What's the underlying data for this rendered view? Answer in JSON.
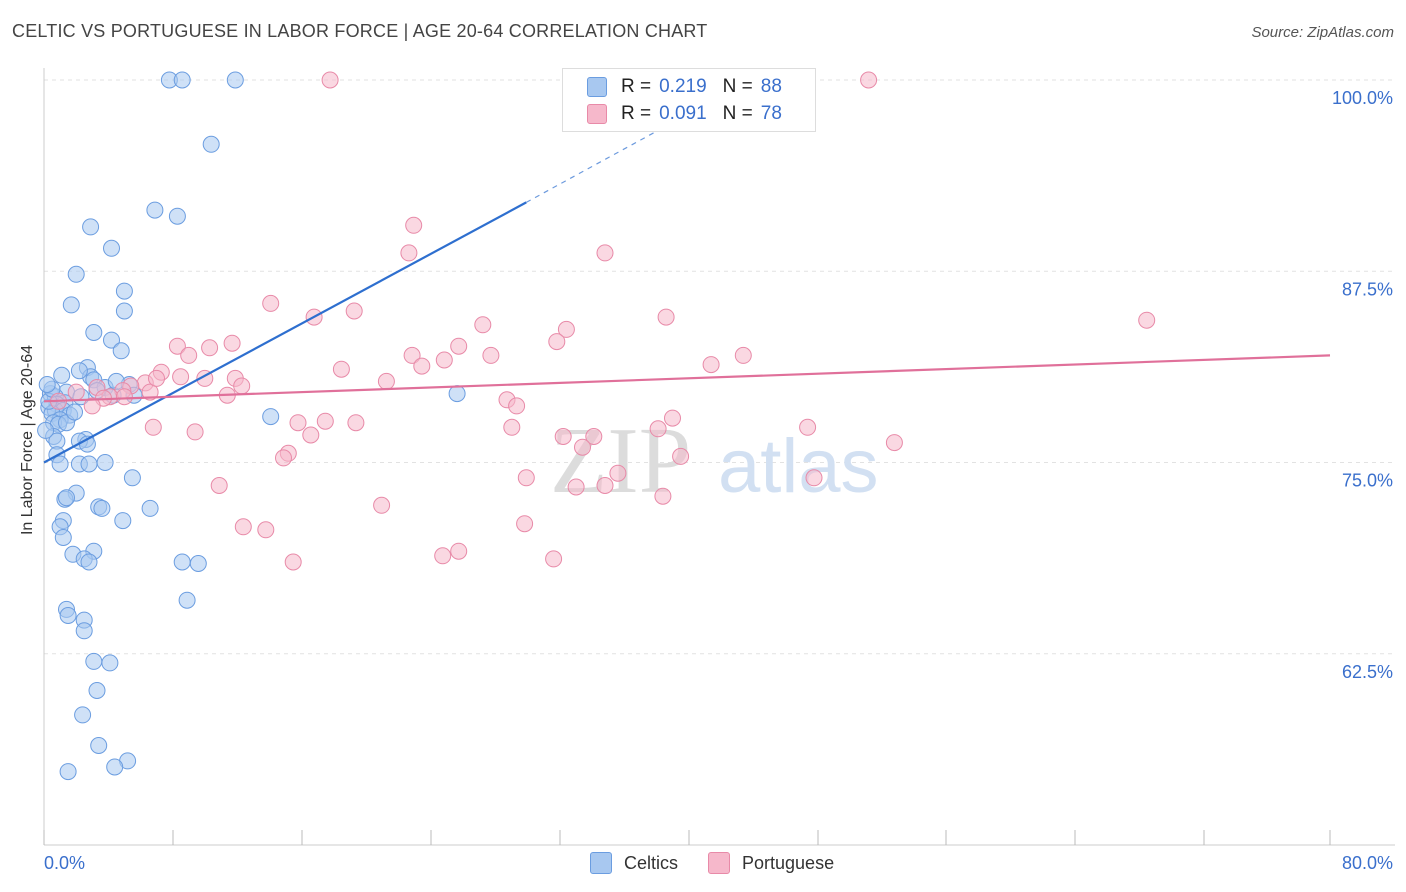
{
  "header": {
    "title": "CELTIC VS PORTUGUESE IN LABOR FORCE | AGE 20-64 CORRELATION CHART",
    "source": "Source: ZipAtlas.com"
  },
  "watermark": {
    "zip": "ZIP",
    "atlas": "atlas"
  },
  "legend": {
    "r_label": "R =",
    "n_label": "N =",
    "series": [
      {
        "name": "Celtics",
        "r": "0.219",
        "n": "88",
        "color": "#a8c8f0",
        "stroke": "#6b9de0"
      },
      {
        "name": "Portuguese",
        "r": "0.091",
        "n": "78",
        "color": "#f6b8cb",
        "stroke": "#e88aa8"
      }
    ]
  },
  "chart_data": {
    "type": "scatter",
    "title": "CELTIC VS PORTUGUESE IN LABOR FORCE | AGE 20-64 CORRELATION CHART",
    "xlabel": "",
    "ylabel": "In Labor Force | Age 20-64",
    "xlim": [
      0,
      80
    ],
    "ylim": [
      50,
      100
    ],
    "x_tick_labels": [
      "0.0%",
      "80.0%"
    ],
    "y_ticks": [
      62.5,
      75.0,
      87.5,
      100.0
    ],
    "y_tick_labels": [
      "62.5%",
      "75.0%",
      "87.5%",
      "100.0%"
    ],
    "grid": true,
    "series": [
      {
        "name": "Celtics",
        "color": "#a8c8f0",
        "stroke": "#6b9de0",
        "trend": {
          "color": "#2e6fcf",
          "x0": 0,
          "y0": 75.0,
          "x1": 30.0,
          "y1": 92.0,
          "dash_to_x": 45,
          "dash_to_y": 100.6
        },
        "points": [
          [
            7.8,
            100
          ],
          [
            8.6,
            100
          ],
          [
            11.9,
            100
          ],
          [
            10.4,
            95.8
          ],
          [
            6.9,
            91.5
          ],
          [
            8.3,
            91.1
          ],
          [
            2.9,
            90.4
          ],
          [
            4.2,
            89.0
          ],
          [
            2.0,
            87.3
          ],
          [
            5.0,
            86.2
          ],
          [
            1.7,
            85.3
          ],
          [
            5.0,
            84.9
          ],
          [
            3.1,
            83.5
          ],
          [
            4.2,
            83.0
          ],
          [
            4.8,
            82.3
          ],
          [
            2.7,
            81.2
          ],
          [
            1.1,
            80.7
          ],
          [
            2.9,
            80.6
          ],
          [
            3.1,
            80.4
          ],
          [
            5.3,
            80.1
          ],
          [
            3.8,
            79.9
          ],
          [
            3.3,
            79.7
          ],
          [
            1.4,
            79.6
          ],
          [
            0.4,
            79.5
          ],
          [
            4.3,
            79.4
          ],
          [
            5.6,
            79.4
          ],
          [
            2.3,
            79.3
          ],
          [
            0.7,
            79.3
          ],
          [
            1.3,
            78.9
          ],
          [
            0.8,
            78.8
          ],
          [
            0.3,
            78.6
          ],
          [
            0.7,
            78.4
          ],
          [
            1.2,
            78.4
          ],
          [
            0.5,
            78.2
          ],
          [
            1.6,
            78.1
          ],
          [
            14.1,
            78.0
          ],
          [
            1.0,
            77.8
          ],
          [
            0.6,
            77.6
          ],
          [
            0.9,
            77.5
          ],
          [
            1.4,
            77.6
          ],
          [
            25.7,
            79.5
          ],
          [
            0.6,
            76.7
          ],
          [
            2.6,
            76.5
          ],
          [
            2.2,
            76.4
          ],
          [
            0.8,
            76.4
          ],
          [
            2.7,
            76.2
          ],
          [
            0.8,
            75.5
          ],
          [
            3.8,
            75.0
          ],
          [
            1.0,
            74.9
          ],
          [
            2.2,
            74.9
          ],
          [
            2.8,
            74.9
          ],
          [
            5.5,
            74.0
          ],
          [
            2.0,
            73.0
          ],
          [
            1.3,
            72.6
          ],
          [
            1.4,
            72.7
          ],
          [
            3.4,
            72.1
          ],
          [
            3.6,
            72.0
          ],
          [
            6.6,
            72.0
          ],
          [
            4.9,
            71.2
          ],
          [
            1.2,
            71.2
          ],
          [
            1.0,
            70.8
          ],
          [
            1.2,
            70.1
          ],
          [
            3.1,
            69.2
          ],
          [
            1.8,
            69.0
          ],
          [
            2.5,
            68.7
          ],
          [
            2.8,
            68.5
          ],
          [
            8.6,
            68.5
          ],
          [
            9.6,
            68.4
          ],
          [
            8.9,
            66.0
          ],
          [
            1.4,
            65.4
          ],
          [
            1.5,
            65.0
          ],
          [
            2.5,
            64.7
          ],
          [
            2.5,
            64.0
          ],
          [
            3.1,
            62.0
          ],
          [
            4.1,
            61.9
          ],
          [
            3.3,
            60.1
          ],
          [
            2.4,
            58.5
          ],
          [
            3.4,
            56.5
          ],
          [
            5.2,
            55.5
          ],
          [
            4.4,
            55.1
          ],
          [
            1.5,
            54.8
          ],
          [
            0.1,
            77.1
          ],
          [
            0.3,
            79.0
          ],
          [
            0.5,
            79.8
          ],
          [
            1.9,
            78.3
          ],
          [
            0.2,
            80.1
          ],
          [
            4.5,
            80.3
          ],
          [
            2.2,
            81.0
          ]
        ]
      },
      {
        "name": "Portuguese",
        "color": "#f6b8cb",
        "stroke": "#e88aa8",
        "trend": {
          "color": "#e0709a",
          "x0": 0,
          "y0": 79.0,
          "x1": 80.0,
          "y1": 82.0
        },
        "points": [
          [
            17.8,
            100
          ],
          [
            51.3,
            100
          ],
          [
            23.0,
            90.5
          ],
          [
            22.7,
            88.7
          ],
          [
            34.9,
            88.7
          ],
          [
            14.1,
            85.4
          ],
          [
            19.3,
            84.9
          ],
          [
            16.8,
            84.5
          ],
          [
            38.7,
            84.5
          ],
          [
            68.6,
            84.3
          ],
          [
            27.3,
            84.0
          ],
          [
            32.5,
            83.7
          ],
          [
            11.7,
            82.8
          ],
          [
            25.8,
            82.6
          ],
          [
            8.3,
            82.6
          ],
          [
            10.3,
            82.5
          ],
          [
            31.9,
            82.9
          ],
          [
            9.0,
            82.0
          ],
          [
            22.9,
            82.0
          ],
          [
            27.8,
            82.0
          ],
          [
            24.9,
            81.7
          ],
          [
            43.5,
            82.0
          ],
          [
            41.5,
            81.4
          ],
          [
            18.5,
            81.1
          ],
          [
            7.3,
            80.9
          ],
          [
            8.5,
            80.6
          ],
          [
            10.0,
            80.5
          ],
          [
            11.9,
            80.5
          ],
          [
            21.3,
            80.3
          ],
          [
            6.3,
            80.2
          ],
          [
            5.4,
            80.0
          ],
          [
            3.3,
            79.9
          ],
          [
            4.9,
            79.7
          ],
          [
            6.6,
            79.6
          ],
          [
            11.4,
            79.4
          ],
          [
            4.1,
            79.3
          ],
          [
            5.0,
            79.3
          ],
          [
            3.7,
            79.2
          ],
          [
            28.8,
            79.1
          ],
          [
            0.9,
            79.0
          ],
          [
            29.4,
            78.7
          ],
          [
            3.0,
            78.7
          ],
          [
            17.5,
            77.7
          ],
          [
            15.8,
            77.6
          ],
          [
            19.4,
            77.6
          ],
          [
            6.8,
            77.3
          ],
          [
            47.5,
            77.3
          ],
          [
            29.1,
            77.3
          ],
          [
            38.2,
            77.2
          ],
          [
            9.4,
            77.0
          ],
          [
            16.6,
            76.8
          ],
          [
            32.3,
            76.7
          ],
          [
            34.2,
            76.7
          ],
          [
            52.9,
            76.3
          ],
          [
            15.2,
            75.6
          ],
          [
            14.9,
            75.3
          ],
          [
            39.6,
            75.4
          ],
          [
            35.7,
            74.3
          ],
          [
            30.0,
            74.0
          ],
          [
            47.9,
            74.0
          ],
          [
            34.9,
            73.5
          ],
          [
            33.1,
            73.4
          ],
          [
            10.9,
            73.5
          ],
          [
            38.5,
            72.8
          ],
          [
            21.0,
            72.2
          ],
          [
            29.9,
            71.0
          ],
          [
            12.4,
            70.8
          ],
          [
            13.8,
            70.6
          ],
          [
            25.8,
            69.2
          ],
          [
            24.8,
            68.9
          ],
          [
            31.7,
            68.7
          ],
          [
            15.5,
            68.5
          ],
          [
            7.0,
            80.5
          ],
          [
            2.0,
            79.6
          ],
          [
            12.3,
            80.0
          ],
          [
            23.5,
            81.3
          ],
          [
            39.1,
            77.9
          ],
          [
            33.5,
            76.0
          ]
        ]
      }
    ]
  }
}
